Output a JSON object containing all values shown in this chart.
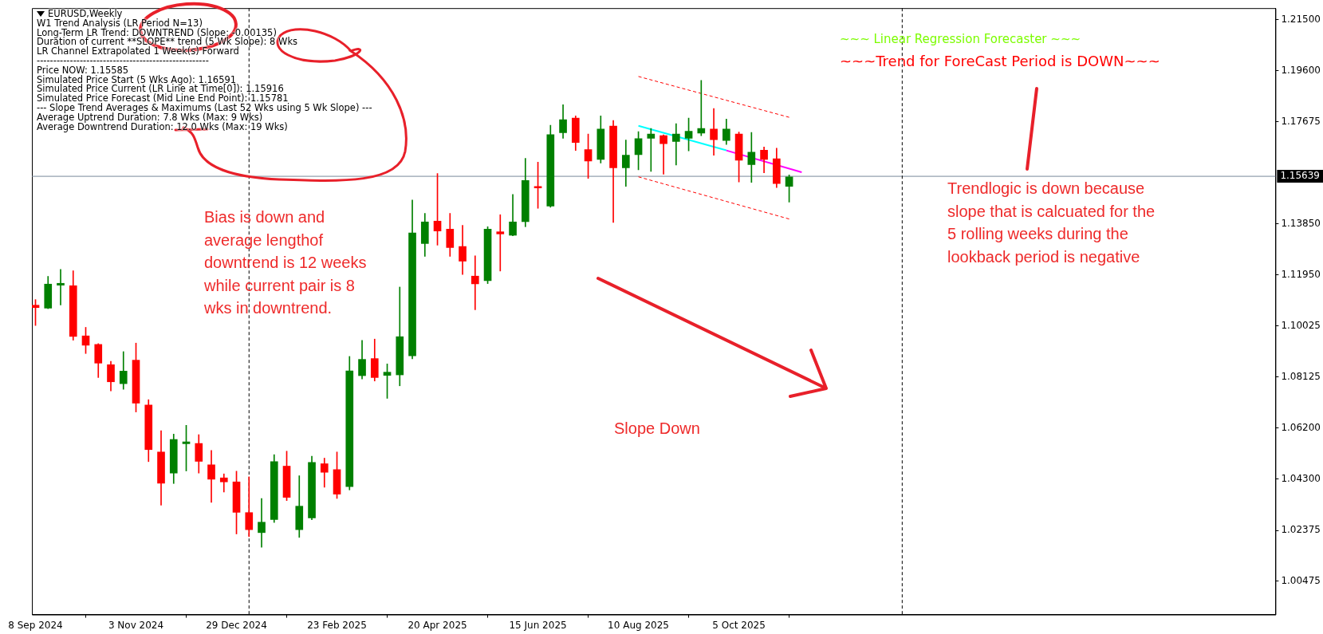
{
  "chart_data": {
    "type": "candlestick",
    "title": "EURUSD,Weekly",
    "x": [
      "2024-09-08",
      "2024-09-15",
      "2024-09-22",
      "2024-09-29",
      "2024-10-06",
      "2024-10-13",
      "2024-10-20",
      "2024-10-27",
      "2024-11-03",
      "2024-11-10",
      "2024-11-17",
      "2024-11-24",
      "2024-12-01",
      "2024-12-08",
      "2024-12-15",
      "2024-12-22",
      "2024-12-29",
      "2025-01-05",
      "2025-01-12",
      "2025-01-19",
      "2025-01-26",
      "2025-02-02",
      "2025-02-09",
      "2025-02-16",
      "2025-02-23",
      "2025-03-02",
      "2025-03-09",
      "2025-03-16",
      "2025-03-23",
      "2025-03-30",
      "2025-04-06",
      "2025-04-13",
      "2025-04-20",
      "2025-04-27",
      "2025-05-04",
      "2025-05-11",
      "2025-05-18",
      "2025-05-25",
      "2025-06-01",
      "2025-06-08",
      "2025-06-15",
      "2025-06-22",
      "2025-06-29",
      "2025-07-06",
      "2025-07-13",
      "2025-07-20",
      "2025-07-27",
      "2025-08-03",
      "2025-08-10",
      "2025-08-17",
      "2025-08-24",
      "2025-08-31",
      "2025-09-07",
      "2025-09-14",
      "2025-09-21",
      "2025-09-28",
      "2025-10-05",
      "2025-10-12",
      "2025-10-19",
      "2025-10-26",
      "2025-11-02"
    ],
    "ohlc": [
      [
        1.1081,
        1.1102,
        1.1005,
        1.1072
      ],
      [
        1.107,
        1.1189,
        1.1068,
        1.116
      ],
      [
        1.1156,
        1.1215,
        1.1082,
        1.1163
      ],
      [
        1.1154,
        1.121,
        1.095,
        1.0964
      ],
      [
        1.0966,
        1.0998,
        1.09,
        1.0931
      ],
      [
        1.0934,
        1.0937,
        1.081,
        1.0864
      ],
      [
        1.0858,
        1.0871,
        1.076,
        1.0794
      ],
      [
        1.0787,
        1.0907,
        1.0766,
        1.0834
      ],
      [
        1.0875,
        1.0939,
        1.0681,
        1.0714
      ],
      [
        1.0707,
        1.0727,
        1.0495,
        1.054
      ],
      [
        1.0531,
        1.0611,
        1.0332,
        1.0414
      ],
      [
        1.0452,
        1.0598,
        1.0413,
        1.0578
      ],
      [
        1.0562,
        1.0631,
        1.046,
        1.0569
      ],
      [
        1.0563,
        1.0596,
        1.0452,
        1.0496
      ],
      [
        1.0483,
        1.0537,
        1.0342,
        1.0429
      ],
      [
        1.0434,
        1.0449,
        1.0381,
        1.0419
      ],
      [
        1.0419,
        1.0459,
        1.0224,
        1.0305
      ],
      [
        1.0304,
        1.0438,
        1.0214,
        1.024
      ],
      [
        1.0229,
        1.0357,
        1.0174,
        1.0268
      ],
      [
        1.0278,
        1.0521,
        1.0267,
        1.0495
      ],
      [
        1.0478,
        1.0534,
        1.0349,
        1.0361
      ],
      [
        1.024,
        1.0442,
        1.0211,
        1.0328
      ],
      [
        1.0284,
        1.0515,
        1.0277,
        1.0492
      ],
      [
        1.0487,
        1.0508,
        1.0399,
        1.0455
      ],
      [
        1.0465,
        1.0531,
        1.0357,
        1.0373
      ],
      [
        1.0401,
        1.0889,
        1.0389,
        1.0835
      ],
      [
        1.0817,
        1.0949,
        1.0805,
        1.0878
      ],
      [
        1.0881,
        1.0954,
        1.0797,
        1.081
      ],
      [
        1.0818,
        1.0861,
        1.0732,
        1.083
      ],
      [
        1.082,
        1.1149,
        1.0779,
        1.0963
      ],
      [
        1.0891,
        1.1475,
        1.088,
        1.1352
      ],
      [
        1.1312,
        1.1425,
        1.1264,
        1.1393
      ],
      [
        1.1396,
        1.1574,
        1.1306,
        1.1359
      ],
      [
        1.1366,
        1.1425,
        1.1264,
        1.1297
      ],
      [
        1.1301,
        1.138,
        1.1196,
        1.1246
      ],
      [
        1.119,
        1.1266,
        1.1064,
        1.1161
      ],
      [
        1.1173,
        1.1375,
        1.1162,
        1.1366
      ],
      [
        1.1356,
        1.142,
        1.1209,
        1.1348
      ],
      [
        1.1343,
        1.1496,
        1.1341,
        1.1393
      ],
      [
        1.1394,
        1.1631,
        1.1375,
        1.1548
      ],
      [
        1.1524,
        1.1617,
        1.1444,
        1.152
      ],
      [
        1.1452,
        1.1755,
        1.1448,
        1.172
      ],
      [
        1.1727,
        1.1832,
        1.1706,
        1.1776
      ],
      [
        1.1782,
        1.179,
        1.1661,
        1.1691
      ],
      [
        1.1664,
        1.1722,
        1.1556,
        1.1621
      ],
      [
        1.1627,
        1.179,
        1.1614,
        1.1741
      ],
      [
        1.1752,
        1.1773,
        1.1391,
        1.1596
      ],
      [
        1.1596,
        1.17,
        1.1526,
        1.1643
      ],
      [
        1.1645,
        1.1731,
        1.1588,
        1.1705
      ],
      [
        1.1706,
        1.1743,
        1.1582,
        1.1722
      ],
      [
        1.1716,
        1.1719,
        1.1572,
        1.1686
      ],
      [
        1.1694,
        1.1761,
        1.1606,
        1.1722
      ],
      [
        1.1706,
        1.1782,
        1.1659,
        1.1733
      ],
      [
        1.1726,
        1.1923,
        1.1716,
        1.1743
      ],
      [
        1.1741,
        1.1818,
        1.1643,
        1.1701
      ],
      [
        1.1698,
        1.1778,
        1.1683,
        1.1741
      ],
      [
        1.1722,
        1.173,
        1.1543,
        1.1624
      ],
      [
        1.1608,
        1.1728,
        1.1541,
        1.1654
      ],
      [
        1.1662,
        1.1674,
        1.1577,
        1.1627
      ],
      [
        1.163,
        1.1669,
        1.1522,
        1.1537
      ],
      [
        1.1526,
        1.1569,
        1.1467,
        1.1562
      ]
    ],
    "colors": [
      "#ff0000",
      "#008000",
      "#008000",
      "#ff0000",
      "#ff0000",
      "#ff0000",
      "#ff0000",
      "#008000",
      "#ff0000",
      "#ff0000",
      "#ff0000",
      "#008000",
      "#008000",
      "#ff0000",
      "#ff0000",
      "#ff0000",
      "#ff0000",
      "#ff0000",
      "#008000",
      "#008000",
      "#ff0000",
      "#008000",
      "#008000",
      "#ff0000",
      "#ff0000",
      "#008000",
      "#008000",
      "#ff0000",
      "#008000",
      "#008000",
      "#008000",
      "#008000",
      "#ff0000",
      "#ff0000",
      "#ff0000",
      "#ff0000",
      "#008000",
      "#ff0000",
      "#008000",
      "#008000",
      "#ff0000",
      "#008000",
      "#008000",
      "#ff0000",
      "#ff0000",
      "#008000",
      "#ff0000",
      "#008000",
      "#008000",
      "#008000",
      "#ff0000",
      "#008000",
      "#008000",
      "#008000",
      "#ff0000",
      "#008000",
      "#ff0000",
      "#008000",
      "#ff0000",
      "#ff0000",
      "#008000"
    ],
    "series": [
      {
        "type": "line",
        "color": "#00ffff",
        "x": [
          "2025-08-10",
          "2025-09-28"
        ],
        "values": [
          1.1753,
          1.1661
        ]
      },
      {
        "type": "line",
        "color": "#ff00ff",
        "x": [
          "2025-09-28",
          "2025-11-09"
        ],
        "values": [
          1.1661,
          1.1579
        ]
      },
      {
        "type": "line",
        "color": "#ff0000",
        "line_style": "dashed",
        "x": [
          "2025-08-10",
          "2025-11-02"
        ],
        "values": [
          1.1938,
          1.1785
        ]
      },
      {
        "type": "line",
        "color": "#ff0000",
        "line_style": "dashed",
        "x": [
          "2025-08-10",
          "2025-11-02"
        ],
        "values": [
          1.1562,
          1.1404
        ]
      }
    ],
    "xlim": [
      "2024-09-06",
      "2026-07-31"
    ],
    "xticks": [
      {
        "value": "2024-09-08",
        "label": "8 Sep 2024"
      },
      {
        "value": "2024-11-03",
        "label": "3 Nov 2024"
      },
      {
        "value": "2024-12-29",
        "label": "29 Dec 2024"
      },
      {
        "value": "2025-02-23",
        "label": "23 Feb 2025"
      },
      {
        "value": "2025-04-20",
        "label": "20 Apr 2025"
      },
      {
        "value": "2025-06-15",
        "label": "15 Jun 2025"
      },
      {
        "value": "2025-08-10",
        "label": "10 Aug 2025"
      },
      {
        "value": "2025-10-05",
        "label": "5 Oct 2025"
      }
    ],
    "ylim": [
      0.9922,
      1.2194
    ],
    "yticks": [
      {
        "value": 1.00475,
        "label": "1.00475"
      },
      {
        "value": 1.02375,
        "label": "1.02375"
      },
      {
        "value": 1.043,
        "label": "1.04300"
      },
      {
        "value": 1.062,
        "label": "1.06200"
      },
      {
        "value": 1.08125,
        "label": "1.08125"
      },
      {
        "value": 1.10025,
        "label": "1.10025"
      },
      {
        "value": 1.1195,
        "label": "1.11950"
      },
      {
        "value": 1.1385,
        "label": "1.13850"
      },
      {
        "value": 1.17675,
        "label": "1.17675"
      },
      {
        "value": 1.196,
        "label": "1.19600"
      },
      {
        "value": 1.215,
        "label": "1.21500"
      }
    ],
    "ref_lines": [
      {
        "axis": "y",
        "value": 1.15639,
        "label": "1.15639",
        "color": "#778899"
      },
      {
        "axis": "x",
        "value": "2025-01-05",
        "color": "#000000",
        "line_style": "dashed"
      },
      {
        "axis": "x",
        "value": "2026-01-04",
        "color": "#000000",
        "line_style": "dashed"
      }
    ],
    "annotations": [
      "W1 Trend Analysis (LR Period N=13)",
      "Long-Term LR Trend: DOWNTREND (Slope: -0.00135)",
      "Duration of current **SLOPE** trend (5 Wk Slope): 8 Wks",
      "LR Channel Extrapolated 1 Week(s) Forward",
      "----------------------------------------------------",
      "Price NOW: 1.15585",
      "Simulated Price Start (5 Wks Ago): 1.16591",
      "Simulated Price Current (LR Line at Time[0]): 1.15916",
      "Simulated Price Forecast (Mid Line End Point): 1.15781",
      "--- Slope Trend Averages & Maximums (Last 52 Wks using 5 Wk Slope) ---",
      "Average Uptrend Duration: 7.8 Wks (Max: 9 Wks)",
      "Average Downtrend Duration: 12.0 Wks (Max: 19 Wks)",
      "~~~ Linear Regression Forecaster ~~~",
      "~~~Trend for ForeCast Period is DOWN~~~",
      "Bias is down and average lengthof downtrend is 12 weeks while current pair is 8 wks in downtrend.",
      "Slope Down",
      "Trendlogic is down because slope that is calcuated for the 5 rolling weeks during the lookback period is negative"
    ],
    "grid": false,
    "legend": false
  }
}
